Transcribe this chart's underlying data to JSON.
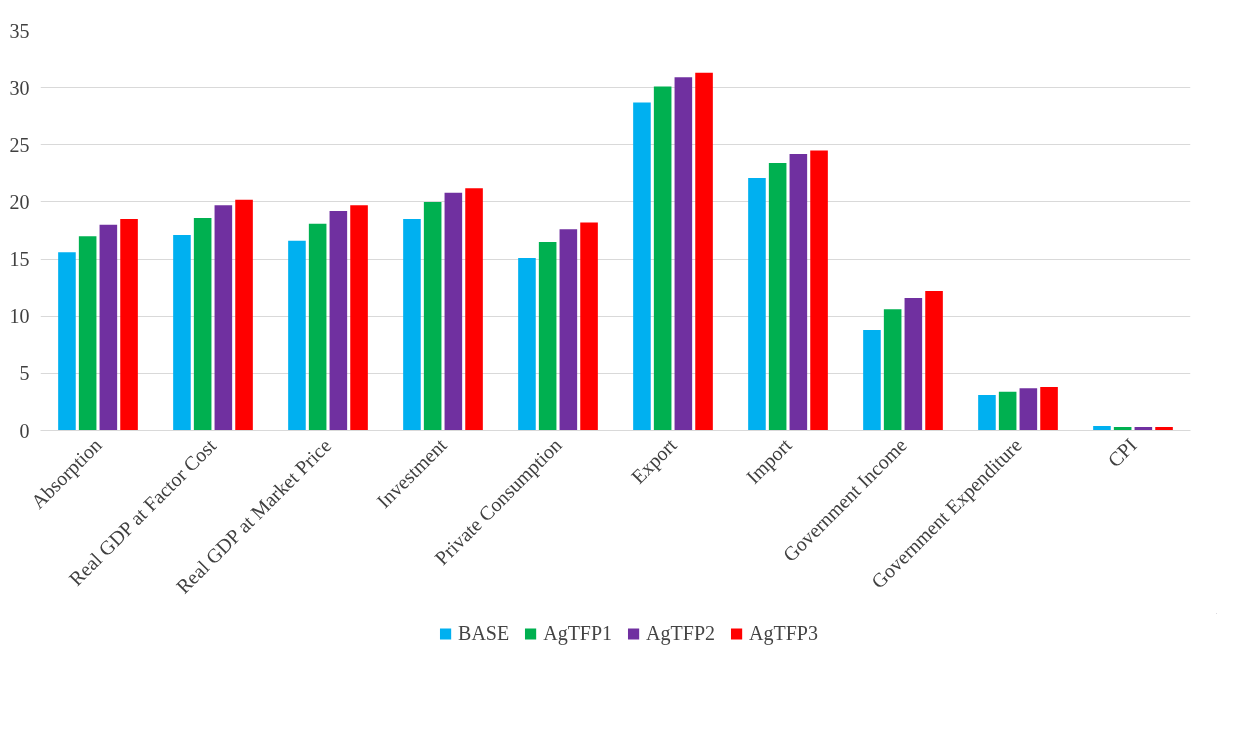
{
  "chart_data": {
    "type": "bar",
    "categories": [
      "Absorption",
      "Real GDP at Factor Cost",
      "Real GDP at Market Price",
      "Investment",
      "Private Consumption",
      "Export",
      "Import",
      "Government Income",
      "Government Expenditure",
      "CPI"
    ],
    "series": [
      {
        "name": "BASE",
        "color": "#00b0f0",
        "values": [
          15.6,
          17.1,
          16.6,
          18.5,
          15.1,
          28.7,
          22.1,
          8.8,
          3.1,
          0.4
        ]
      },
      {
        "name": "AgTFP1",
        "color": "#00b050",
        "values": [
          17.0,
          18.6,
          18.1,
          20.0,
          16.5,
          30.1,
          23.4,
          10.6,
          3.4,
          0.3
        ]
      },
      {
        "name": "AgTFP2",
        "color": "#7030a0",
        "values": [
          18.0,
          19.7,
          19.2,
          20.8,
          17.6,
          30.9,
          24.2,
          11.6,
          3.7,
          0.3
        ]
      },
      {
        "name": "AgTFP3",
        "color": "#ff0000",
        "values": [
          18.5,
          20.2,
          19.7,
          21.2,
          18.2,
          31.3,
          24.5,
          12.2,
          3.8,
          0.3
        ]
      }
    ],
    "ylim": [
      0,
      35
    ],
    "yticks": [
      0,
      5,
      10,
      15,
      20,
      25,
      30,
      35
    ],
    "grid": "y",
    "legend": "bottom"
  }
}
